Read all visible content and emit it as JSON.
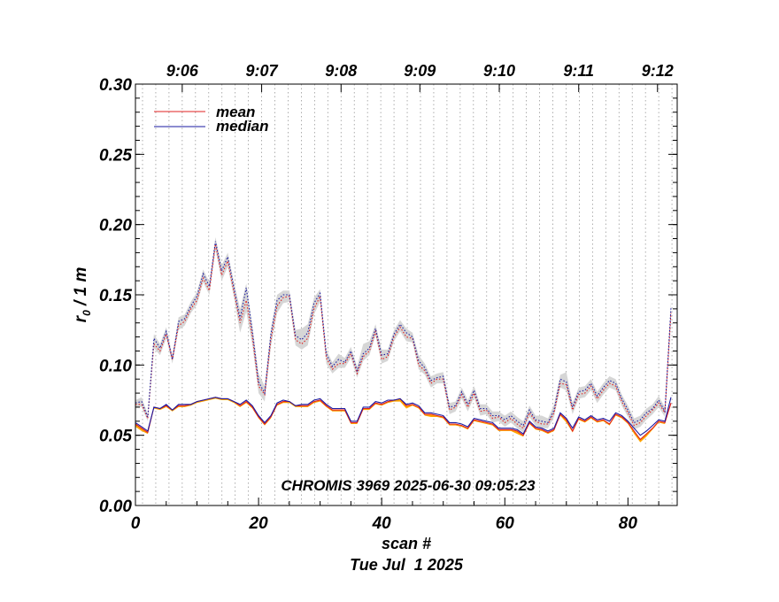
{
  "chart_data": {
    "type": "line",
    "title": "CHROMIS 3969 2025-06-30 09:05:23",
    "xlabel": "scan #",
    "xlabel2": "Tue Jul  1 2025",
    "ylabel": "r",
    "ylabel_sub": "0",
    "ylabel_suffix": " / 1 m",
    "xlim": [
      0,
      88
    ],
    "ylim": [
      0.0,
      0.3
    ],
    "x_ticks": [
      0,
      20,
      40,
      60,
      80
    ],
    "x_tick_labels": [
      "0",
      "20",
      "40",
      "60",
      "80"
    ],
    "y_ticks": [
      0.0,
      0.05,
      0.1,
      0.15,
      0.2,
      0.25,
      0.3
    ],
    "y_tick_labels": [
      "0.00",
      "0.05",
      "0.10",
      "0.15",
      "0.20",
      "0.25",
      "0.30"
    ],
    "time_axis": {
      "ticks": [
        7.6,
        20.5,
        33.4,
        46.2,
        59.1,
        72.0,
        84.8
      ],
      "labels": [
        "9:06",
        "9:07",
        "9:08",
        "9:09",
        "9:10",
        "9:11",
        "9:12"
      ]
    },
    "legend_placement": "top-left",
    "legend": [
      {
        "label": "mean",
        "color": "#e02020"
      },
      {
        "label": "median",
        "color": "#1a1aa0"
      }
    ],
    "series": [
      {
        "name": "mean (lower, solid)",
        "color": "#e02020",
        "style": "solid",
        "values": [
          0.058,
          0.055,
          0.052,
          0.07,
          0.069,
          0.071,
          0.068,
          0.071,
          0.071,
          0.072,
          0.074,
          0.075,
          0.076,
          0.077,
          0.076,
          0.076,
          0.074,
          0.071,
          0.074,
          0.07,
          0.063,
          0.058,
          0.063,
          0.072,
          0.074,
          0.074,
          0.071,
          0.071,
          0.071,
          0.074,
          0.075,
          0.071,
          0.068,
          0.068,
          0.068,
          0.059,
          0.059,
          0.069,
          0.069,
          0.073,
          0.072,
          0.074,
          0.075,
          0.076,
          0.071,
          0.072,
          0.07,
          0.065,
          0.065,
          0.064,
          0.063,
          0.058,
          0.058,
          0.057,
          0.055,
          0.061,
          0.06,
          0.059,
          0.058,
          0.054,
          0.054,
          0.054,
          0.053,
          0.05,
          0.059,
          0.055,
          0.054,
          0.052,
          0.054,
          0.065,
          0.061,
          0.053,
          0.062,
          0.06,
          0.063,
          0.06,
          0.061,
          0.058,
          0.065,
          0.063,
          0.059,
          0.053,
          0.047,
          0.051,
          0.055,
          0.06,
          0.059,
          0.073
        ]
      },
      {
        "name": "median (lower, solid)",
        "color": "#1a1aa0",
        "style": "solid",
        "values": [
          0.059,
          0.056,
          0.053,
          0.07,
          0.069,
          0.072,
          0.068,
          0.072,
          0.072,
          0.072,
          0.074,
          0.075,
          0.076,
          0.077,
          0.076,
          0.076,
          0.074,
          0.072,
          0.075,
          0.071,
          0.064,
          0.059,
          0.064,
          0.073,
          0.075,
          0.074,
          0.071,
          0.072,
          0.072,
          0.075,
          0.076,
          0.072,
          0.069,
          0.069,
          0.069,
          0.06,
          0.06,
          0.07,
          0.07,
          0.074,
          0.073,
          0.075,
          0.075,
          0.076,
          0.072,
          0.073,
          0.071,
          0.066,
          0.066,
          0.065,
          0.064,
          0.059,
          0.059,
          0.058,
          0.056,
          0.062,
          0.061,
          0.06,
          0.059,
          0.055,
          0.055,
          0.055,
          0.054,
          0.051,
          0.06,
          0.056,
          0.055,
          0.053,
          0.055,
          0.066,
          0.062,
          0.055,
          0.063,
          0.061,
          0.064,
          0.061,
          0.062,
          0.06,
          0.066,
          0.064,
          0.06,
          0.055,
          0.05,
          0.053,
          0.057,
          0.061,
          0.06,
          0.077
        ]
      },
      {
        "name": "mean (upper, dotted)",
        "color": "#e02020",
        "style": "dotted",
        "values": [
          0.072,
          0.072,
          0.062,
          0.115,
          0.11,
          0.122,
          0.104,
          0.128,
          0.131,
          0.14,
          0.146,
          0.162,
          0.153,
          0.186,
          0.164,
          0.174,
          0.152,
          0.13,
          0.146,
          0.12,
          0.085,
          0.079,
          0.118,
          0.142,
          0.148,
          0.149,
          0.118,
          0.115,
          0.119,
          0.14,
          0.149,
          0.105,
          0.097,
          0.101,
          0.101,
          0.108,
          0.094,
          0.106,
          0.11,
          0.124,
          0.104,
          0.106,
          0.12,
          0.127,
          0.12,
          0.119,
          0.1,
          0.096,
          0.087,
          0.09,
          0.09,
          0.068,
          0.07,
          0.079,
          0.07,
          0.08,
          0.067,
          0.068,
          0.062,
          0.063,
          0.059,
          0.062,
          0.058,
          0.055,
          0.066,
          0.06,
          0.058,
          0.058,
          0.066,
          0.087,
          0.086,
          0.068,
          0.079,
          0.08,
          0.085,
          0.076,
          0.082,
          0.087,
          0.085,
          0.074,
          0.066,
          0.057,
          0.059,
          0.064,
          0.068,
          0.073,
          0.066,
          0.137
        ]
      },
      {
        "name": "median (upper, dotted)",
        "color": "#1a1aa0",
        "style": "dotted",
        "values": [
          0.073,
          0.074,
          0.063,
          0.119,
          0.112,
          0.124,
          0.104,
          0.131,
          0.133,
          0.142,
          0.149,
          0.165,
          0.156,
          0.188,
          0.167,
          0.177,
          0.155,
          0.133,
          0.155,
          0.124,
          0.088,
          0.08,
          0.122,
          0.146,
          0.15,
          0.15,
          0.121,
          0.118,
          0.123,
          0.144,
          0.151,
          0.108,
          0.099,
          0.104,
          0.102,
          0.11,
          0.096,
          0.108,
          0.112,
          0.126,
          0.107,
          0.108,
          0.122,
          0.129,
          0.123,
          0.12,
          0.103,
          0.098,
          0.089,
          0.091,
          0.092,
          0.07,
          0.071,
          0.081,
          0.072,
          0.082,
          0.069,
          0.069,
          0.064,
          0.064,
          0.061,
          0.064,
          0.06,
          0.057,
          0.068,
          0.061,
          0.06,
          0.059,
          0.068,
          0.09,
          0.088,
          0.07,
          0.081,
          0.082,
          0.087,
          0.078,
          0.084,
          0.089,
          0.087,
          0.076,
          0.068,
          0.059,
          0.061,
          0.066,
          0.069,
          0.075,
          0.067,
          0.141
        ]
      }
    ],
    "bands": [
      {
        "name": "orange spread (lower)",
        "color": "#ffa500",
        "lower": [
          0.056,
          0.053,
          0.051,
          0.069,
          0.068,
          0.07,
          0.067,
          0.07,
          0.07,
          0.071,
          0.073,
          0.074,
          0.075,
          0.076,
          0.075,
          0.075,
          0.073,
          0.07,
          0.073,
          0.069,
          0.062,
          0.057,
          0.062,
          0.071,
          0.073,
          0.073,
          0.07,
          0.07,
          0.07,
          0.073,
          0.074,
          0.07,
          0.067,
          0.067,
          0.067,
          0.058,
          0.058,
          0.068,
          0.068,
          0.072,
          0.071,
          0.073,
          0.074,
          0.074,
          0.069,
          0.071,
          0.069,
          0.064,
          0.063,
          0.063,
          0.062,
          0.057,
          0.057,
          0.056,
          0.054,
          0.06,
          0.059,
          0.058,
          0.057,
          0.053,
          0.053,
          0.053,
          0.051,
          0.049,
          0.058,
          0.054,
          0.053,
          0.051,
          0.053,
          0.064,
          0.059,
          0.052,
          0.061,
          0.059,
          0.062,
          0.059,
          0.06,
          0.057,
          0.064,
          0.062,
          0.058,
          0.051,
          0.045,
          0.049,
          0.054,
          0.059,
          0.058,
          0.072
        ],
        "upper": [
          0.058,
          0.055,
          0.052,
          0.07,
          0.069,
          0.071,
          0.068,
          0.071,
          0.071,
          0.072,
          0.074,
          0.075,
          0.076,
          0.077,
          0.076,
          0.076,
          0.074,
          0.071,
          0.074,
          0.07,
          0.063,
          0.058,
          0.063,
          0.072,
          0.074,
          0.074,
          0.071,
          0.071,
          0.071,
          0.074,
          0.075,
          0.071,
          0.068,
          0.068,
          0.068,
          0.059,
          0.059,
          0.069,
          0.069,
          0.073,
          0.072,
          0.074,
          0.075,
          0.076,
          0.071,
          0.072,
          0.07,
          0.065,
          0.065,
          0.064,
          0.063,
          0.058,
          0.058,
          0.057,
          0.055,
          0.061,
          0.06,
          0.059,
          0.058,
          0.054,
          0.054,
          0.054,
          0.053,
          0.05,
          0.059,
          0.055,
          0.054,
          0.052,
          0.054,
          0.065,
          0.061,
          0.053,
          0.062,
          0.06,
          0.063,
          0.06,
          0.061,
          0.058,
          0.065,
          0.063,
          0.059,
          0.053,
          0.047,
          0.051,
          0.055,
          0.06,
          0.059,
          0.073
        ]
      },
      {
        "name": "gray spread (upper)",
        "color": "#d6d6d6",
        "lower": [
          0.07,
          0.07,
          0.06,
          0.112,
          0.107,
          0.119,
          0.101,
          0.125,
          0.128,
          0.137,
          0.143,
          0.159,
          0.15,
          0.182,
          0.16,
          0.17,
          0.148,
          0.123,
          0.138,
          0.114,
          0.08,
          0.074,
          0.113,
          0.137,
          0.144,
          0.145,
          0.114,
          0.111,
          0.114,
          0.136,
          0.145,
          0.101,
          0.094,
          0.098,
          0.098,
          0.105,
          0.091,
          0.103,
          0.107,
          0.121,
          0.101,
          0.103,
          0.117,
          0.124,
          0.117,
          0.116,
          0.097,
          0.093,
          0.084,
          0.087,
          0.087,
          0.065,
          0.067,
          0.076,
          0.067,
          0.077,
          0.064,
          0.065,
          0.059,
          0.06,
          0.056,
          0.059,
          0.055,
          0.052,
          0.063,
          0.057,
          0.055,
          0.055,
          0.063,
          0.084,
          0.082,
          0.065,
          0.076,
          0.077,
          0.082,
          0.073,
          0.079,
          0.084,
          0.082,
          0.071,
          0.063,
          0.054,
          0.056,
          0.061,
          0.065,
          0.07,
          0.063,
          0.132
        ],
        "upper": [
          0.075,
          0.077,
          0.065,
          0.122,
          0.115,
          0.127,
          0.107,
          0.134,
          0.136,
          0.145,
          0.152,
          0.168,
          0.159,
          0.191,
          0.171,
          0.18,
          0.159,
          0.14,
          0.158,
          0.128,
          0.094,
          0.085,
          0.126,
          0.15,
          0.153,
          0.153,
          0.125,
          0.126,
          0.129,
          0.148,
          0.154,
          0.111,
          0.102,
          0.108,
          0.105,
          0.113,
          0.099,
          0.115,
          0.117,
          0.129,
          0.111,
          0.111,
          0.125,
          0.132,
          0.126,
          0.123,
          0.107,
          0.101,
          0.092,
          0.094,
          0.095,
          0.073,
          0.074,
          0.084,
          0.075,
          0.085,
          0.072,
          0.072,
          0.067,
          0.067,
          0.064,
          0.067,
          0.063,
          0.06,
          0.071,
          0.064,
          0.064,
          0.062,
          0.072,
          0.093,
          0.095,
          0.073,
          0.084,
          0.085,
          0.09,
          0.081,
          0.087,
          0.092,
          0.09,
          0.079,
          0.071,
          0.062,
          0.064,
          0.069,
          0.072,
          0.078,
          0.07,
          0.145
        ]
      }
    ]
  }
}
